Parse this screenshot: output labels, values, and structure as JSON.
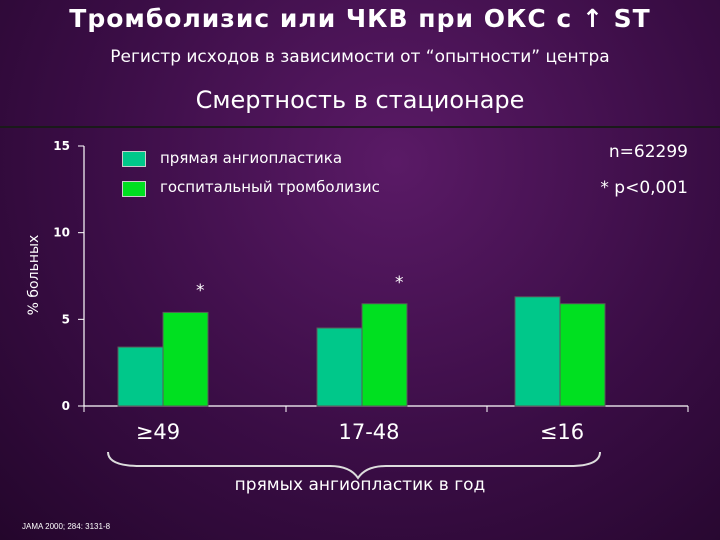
{
  "title": {
    "text": "Тромболизис или  ЧКВ при ОКС с",
    "arrow": "↑",
    "suffix": "ST"
  },
  "subtitle": "Регистр исходов в зависимости от “опытности” центра",
  "heading": "Смертность в стационаре",
  "stats": {
    "n": "n=62299",
    "p": "* p<0,001"
  },
  "caption": "прямых ангиопластик в год",
  "source": "JAMA 2000; 284: 3131-8",
  "colors": {
    "pci": "#00c88a",
    "thrombolysis": "#00e020",
    "brace": "#dddddd"
  },
  "chart_data": {
    "type": "bar",
    "ylabel": "% больных",
    "ylim": [
      0,
      15
    ],
    "yticks": [
      "0",
      "5",
      "10",
      "15"
    ],
    "categories": [
      "≥49",
      "17-48",
      "≤16"
    ],
    "series": [
      {
        "name": "прямая ангиопластика",
        "values": [
          3.4,
          4.5,
          6.3
        ]
      },
      {
        "name": "госпитальный тромболизис",
        "values": [
          5.4,
          5.9,
          5.9
        ]
      }
    ],
    "annotations": [
      "*",
      "*"
    ],
    "legend": "top-left",
    "grid": false
  }
}
